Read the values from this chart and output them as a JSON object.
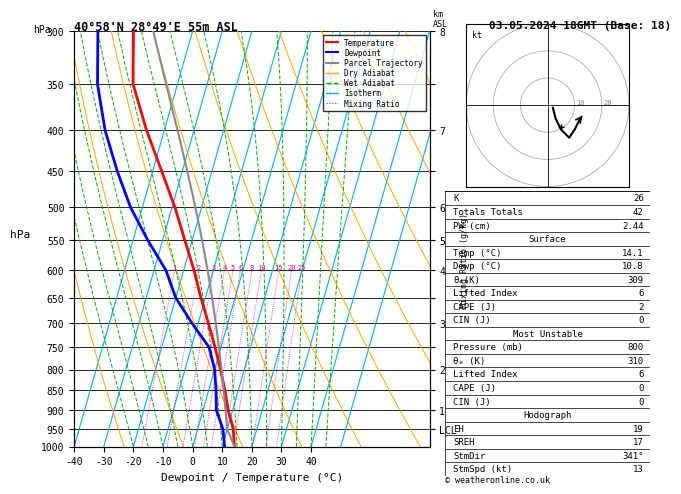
{
  "title_left": "40°58'N 28°49'E 55m ASL",
  "title_right": "03.05.2024 18GMT (Base: 18)",
  "xlabel": "Dewpoint / Temperature (°C)",
  "ylabel_left": "hPa",
  "pressure_levels": [
    300,
    350,
    400,
    450,
    500,
    550,
    600,
    650,
    700,
    750,
    800,
    850,
    900,
    950,
    1000
  ],
  "xlim": [
    -40,
    40
  ],
  "skew_factor": 40.0,
  "temp_color": "#ff0000",
  "dewp_color": "#0000ff",
  "parcel_color": "#888888",
  "dry_adiabat_color": "#ffa500",
  "wet_adiabat_color": "#00aa00",
  "isotherm_color": "#00aaff",
  "mixing_ratio_color": "#dd00aa",
  "background_color": "#ffffff",
  "stats_K": "26",
  "stats_TT": "42",
  "stats_PW": "2.44",
  "sfc_temp": "14.1",
  "sfc_dewp": "10.8",
  "sfc_theta": "309",
  "sfc_li": "6",
  "sfc_cape": "2",
  "sfc_cin": "0",
  "mu_pres": "800",
  "mu_theta": "310",
  "mu_li": "6",
  "mu_cape": "0",
  "mu_cin": "0",
  "hodo_EH": "19",
  "hodo_SREH": "17",
  "hodo_StmDir": "341°",
  "hodo_StmSpd": "13",
  "copyright": "© weatheronline.co.uk",
  "km_ticks_p": [
    300,
    350,
    400,
    450,
    500,
    550,
    600,
    650,
    700,
    750,
    800,
    850,
    900,
    950
  ],
  "km_labels": [
    "8",
    "",
    "7",
    "",
    "6",
    "5",
    "4",
    "",
    "3",
    "",
    "2",
    "",
    "1",
    "LCL"
  ]
}
